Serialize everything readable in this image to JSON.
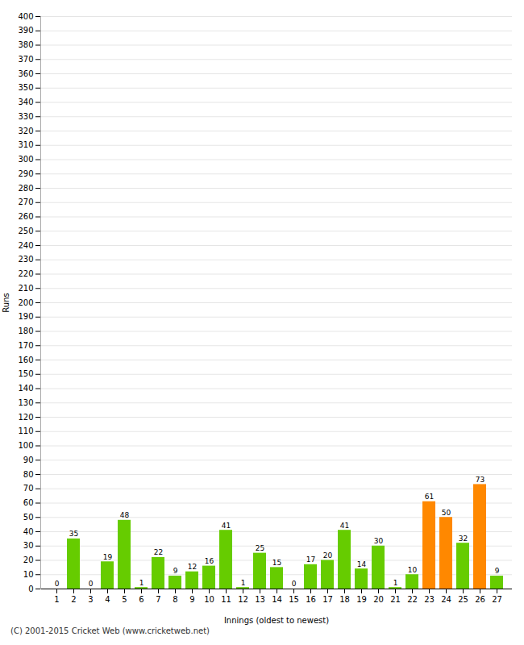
{
  "chart_data": {
    "type": "bar",
    "xlabel": "Innings (oldest to newest)",
    "ylabel": "Runs",
    "categories": [
      "1",
      "2",
      "3",
      "4",
      "5",
      "6",
      "7",
      "8",
      "9",
      "10",
      "11",
      "12",
      "13",
      "14",
      "15",
      "16",
      "17",
      "18",
      "19",
      "20",
      "21",
      "22",
      "23",
      "24",
      "25",
      "26",
      "27"
    ],
    "values": [
      0,
      35,
      0,
      19,
      48,
      1,
      22,
      9,
      12,
      16,
      41,
      1,
      25,
      15,
      0,
      17,
      20,
      41,
      14,
      30,
      1,
      10,
      61,
      50,
      32,
      73,
      9
    ],
    "colors": [
      "#66cc00",
      "#66cc00",
      "#66cc00",
      "#66cc00",
      "#66cc00",
      "#66cc00",
      "#66cc00",
      "#66cc00",
      "#66cc00",
      "#66cc00",
      "#66cc00",
      "#66cc00",
      "#66cc00",
      "#66cc00",
      "#66cc00",
      "#66cc00",
      "#66cc00",
      "#66cc00",
      "#66cc00",
      "#66cc00",
      "#66cc00",
      "#66cc00",
      "#ff8800",
      "#ff8800",
      "#66cc00",
      "#ff8800",
      "#66cc00"
    ],
    "data_labels": true,
    "ylim": [
      0,
      400
    ],
    "yticks": [
      0,
      10,
      20,
      30,
      40,
      50,
      60,
      70,
      80,
      90,
      100,
      110,
      120,
      130,
      140,
      150,
      160,
      170,
      180,
      190,
      200,
      210,
      220,
      230,
      240,
      250,
      260,
      270,
      280,
      290,
      300,
      310,
      320,
      330,
      340,
      350,
      360,
      370,
      380,
      390,
      400
    ],
    "grid": true,
    "annotations": [
      "(C) 2001-2015 Cricket Web (www.cricketweb.net)"
    ]
  }
}
